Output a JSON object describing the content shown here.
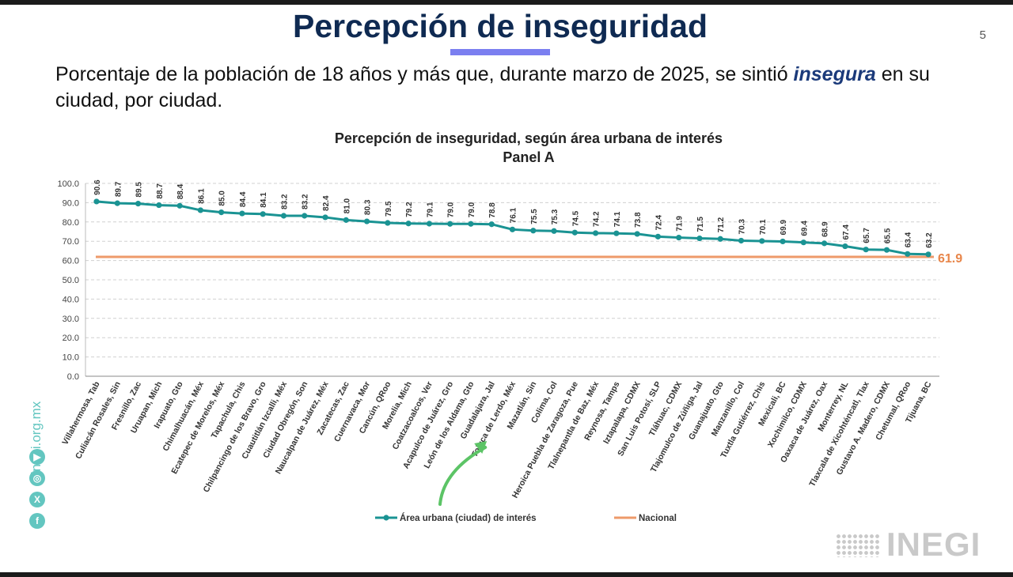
{
  "header": {
    "title": "Percepción de inseguridad",
    "page_number": "5",
    "subtitle_before": "Porcentaje de la población de 18 años y más que, durante marzo de 2025, se sintió ",
    "subtitle_emphasis": "insegura",
    "subtitle_after": " en su ciudad, por ciudad."
  },
  "chart_data": {
    "type": "line",
    "title": "Percepción de inseguridad, según área urbana de interés",
    "subtitle": "Panel A",
    "xlabel": "",
    "ylabel": "",
    "ylim": [
      0,
      100
    ],
    "yticks": [
      "0.0",
      "10.0",
      "20.0",
      "30.0",
      "40.0",
      "50.0",
      "60.0",
      "70.0",
      "80.0",
      "90.0",
      "100.0"
    ],
    "grid": true,
    "legend_position": "bottom",
    "categories": [
      "Villahermosa, Tab",
      "Culiacán Rosales, Sin",
      "Fresnillo, Zac",
      "Uruapan, Mich",
      "Irapuato, Gto",
      "Chimalhuacán, Méx",
      "Ecatepec de Morelos, Méx",
      "Tapachula, Chis",
      "Chilpancingo de los Bravo, Gro",
      "Cuautitlán Izcalli, Méx",
      "Ciudad Obregón, Son",
      "Naucalpan de Juárez, Méx",
      "Zacatecas, Zac",
      "Cuernavaca, Mor",
      "Cancún, QRoo",
      "Morelia, Mich",
      "Coatzacoalcos, Ver",
      "Acapulco de Juárez, Gro",
      "León de los Aldama, Gto",
      "Guadalajara, Jal",
      "Toluca de Lerdo, Méx",
      "Mazatlán, Sin",
      "Colima, Col",
      "Heroica Puebla de Zaragoza, Pue",
      "Tlalnepantla de Baz, Méx",
      "Reynosa, Tamps",
      "Iztapalapa, CDMX",
      "San Luis Potosí, SLP",
      "Tláhuac, CDMX",
      "Tlajomulco de Zúñiga, Jal",
      "Guanajuato, Gto",
      "Manzanillo, Col",
      "Tuxtla Gutiérrez, Chis",
      "Mexicali, BC",
      "Xochimilco, CDMX",
      "Oaxaca de Juárez, Oax",
      "Monterrey, NL",
      "Tlaxcala de Xicohténcatl, Tlax",
      "Gustavo A. Madero, CDMX",
      "Chetumal, QRoo",
      "Tijuana, BC"
    ],
    "series": [
      {
        "name": "Área urbana (ciudad) de interés",
        "color": "#1a9393",
        "values": [
          90.6,
          89.7,
          89.5,
          88.7,
          88.4,
          86.1,
          85.0,
          84.4,
          84.1,
          83.2,
          83.2,
          82.4,
          81.0,
          80.3,
          79.5,
          79.2,
          79.1,
          79.0,
          79.0,
          78.8,
          76.1,
          75.5,
          75.3,
          74.5,
          74.2,
          74.1,
          73.8,
          72.4,
          71.9,
          71.5,
          71.2,
          70.3,
          70.1,
          69.9,
          69.4,
          68.9,
          67.4,
          65.7,
          65.5,
          63.4,
          63.2
        ],
        "labels": [
          "90.6",
          "89.7",
          "89.5",
          "88.7",
          "88.4",
          "86.1",
          "85.0",
          "84.4",
          "84.1",
          "83.2",
          "83.2",
          "82.4",
          "81.0",
          "80.3",
          "79.5",
          "79.2",
          "79.1",
          "79.0",
          "79.0",
          "78.8",
          "76.1",
          "75.5",
          "75.3",
          "74.5",
          "74.2",
          "74.1",
          "73.8",
          "72.4",
          "71.9",
          "71.5",
          "71.2",
          "70.3",
          "70.1",
          "69.9",
          "69.4",
          "68.9",
          "67.4",
          "65.7",
          "65.5",
          "63.4",
          "63.2"
        ]
      },
      {
        "name": "Nacional",
        "color": "#ee9a6a",
        "value": 61.9,
        "label": "61.9"
      }
    ],
    "highlighted_category": "Guadalajara, Jal",
    "annotation_color": "#5cc466"
  },
  "sidebar": {
    "website": "inegi.org.mx",
    "social_icons": [
      "youtube-icon",
      "instagram-icon",
      "x-icon",
      "facebook-icon"
    ],
    "social_glyphs": [
      "▶",
      "◎",
      "X",
      "f"
    ],
    "accent": "#63c6c0"
  },
  "logo": {
    "text": "INEGI"
  }
}
